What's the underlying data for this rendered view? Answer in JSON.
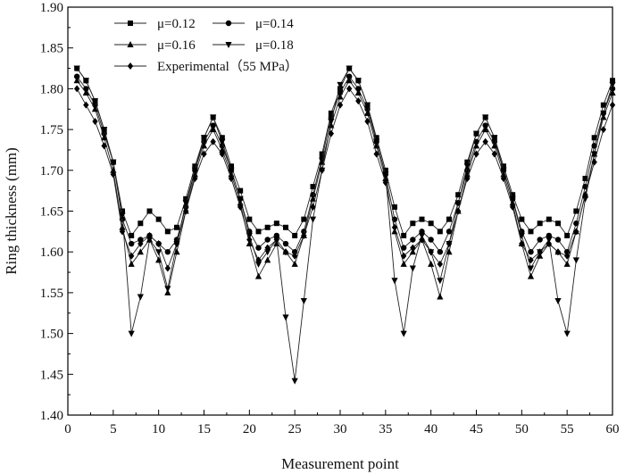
{
  "chart_data": {
    "type": "line",
    "title": "",
    "xlabel": "Measurement point",
    "ylabel": "Ring thickness (mm)",
    "xlim": [
      0,
      60
    ],
    "ylim": [
      1.4,
      1.9
    ],
    "xticks": [
      "0",
      "5",
      "10",
      "15",
      "20",
      "25",
      "30",
      "35",
      "40",
      "45",
      "50",
      "55",
      "60"
    ],
    "yticks": [
      "1.40",
      "1.45",
      "1.50",
      "1.55",
      "1.60",
      "1.65",
      "1.70",
      "1.75",
      "1.80",
      "1.85",
      "1.90"
    ],
    "grid": false,
    "legend_position": "top-left",
    "series": [
      {
        "name": "μ=0.12",
        "marker": "square",
        "x": [
          1,
          2,
          3,
          4,
          5,
          6,
          7,
          8,
          9,
          10,
          11,
          12,
          13,
          14,
          15,
          16,
          17,
          18,
          19,
          20,
          21,
          22,
          23,
          24,
          25,
          26,
          27,
          28,
          29,
          30,
          31,
          32,
          33,
          34,
          35,
          36,
          37,
          38,
          39,
          40,
          41,
          42,
          43,
          44,
          45,
          46,
          47,
          48,
          49,
          50,
          51,
          52,
          53,
          54,
          55,
          56,
          57,
          58,
          59,
          60
        ],
        "values": [
          1.825,
          1.81,
          1.785,
          1.75,
          1.71,
          1.65,
          1.62,
          1.635,
          1.65,
          1.64,
          1.625,
          1.63,
          1.665,
          1.705,
          1.74,
          1.765,
          1.74,
          1.705,
          1.675,
          1.64,
          1.625,
          1.63,
          1.635,
          1.63,
          1.62,
          1.64,
          1.68,
          1.72,
          1.77,
          1.8,
          1.825,
          1.81,
          1.78,
          1.74,
          1.7,
          1.655,
          1.62,
          1.635,
          1.64,
          1.635,
          1.625,
          1.64,
          1.67,
          1.71,
          1.745,
          1.765,
          1.74,
          1.705,
          1.67,
          1.64,
          1.625,
          1.635,
          1.64,
          1.635,
          1.62,
          1.65,
          1.69,
          1.74,
          1.78,
          1.81
        ]
      },
      {
        "name": "μ=0.14",
        "marker": "circle",
        "x": [
          1,
          2,
          3,
          4,
          5,
          6,
          7,
          8,
          9,
          10,
          11,
          12,
          13,
          14,
          15,
          16,
          17,
          18,
          19,
          20,
          21,
          22,
          23,
          24,
          25,
          26,
          27,
          28,
          29,
          30,
          31,
          32,
          33,
          34,
          35,
          36,
          37,
          38,
          39,
          40,
          41,
          42,
          43,
          44,
          45,
          46,
          47,
          48,
          49,
          50,
          51,
          52,
          53,
          54,
          55,
          56,
          57,
          58,
          59,
          60
        ],
        "values": [
          1.815,
          1.8,
          1.78,
          1.745,
          1.71,
          1.64,
          1.61,
          1.615,
          1.62,
          1.61,
          1.6,
          1.615,
          1.655,
          1.7,
          1.735,
          1.755,
          1.73,
          1.7,
          1.665,
          1.625,
          1.605,
          1.615,
          1.62,
          1.61,
          1.6,
          1.625,
          1.67,
          1.715,
          1.765,
          1.795,
          1.815,
          1.8,
          1.775,
          1.735,
          1.695,
          1.64,
          1.605,
          1.615,
          1.625,
          1.615,
          1.6,
          1.625,
          1.66,
          1.7,
          1.735,
          1.755,
          1.735,
          1.7,
          1.665,
          1.625,
          1.6,
          1.615,
          1.62,
          1.615,
          1.6,
          1.635,
          1.68,
          1.73,
          1.77,
          1.8
        ]
      },
      {
        "name": "μ=0.16",
        "marker": "triangle-up",
        "x": [
          1,
          2,
          3,
          4,
          5,
          6,
          7,
          8,
          9,
          10,
          11,
          12,
          13,
          14,
          15,
          16,
          17,
          18,
          19,
          20,
          21,
          22,
          23,
          24,
          25,
          26,
          27,
          28,
          29,
          30,
          31,
          32,
          33,
          34,
          35,
          36,
          37,
          38,
          39,
          40,
          41,
          42,
          43,
          44,
          45,
          46,
          47,
          48,
          49,
          50,
          51,
          52,
          53,
          54,
          55,
          56,
          57,
          58,
          59,
          60
        ],
        "values": [
          1.81,
          1.795,
          1.775,
          1.74,
          1.7,
          1.63,
          1.585,
          1.6,
          1.615,
          1.59,
          1.55,
          1.6,
          1.65,
          1.695,
          1.73,
          1.75,
          1.725,
          1.695,
          1.66,
          1.61,
          1.57,
          1.59,
          1.61,
          1.6,
          1.585,
          1.62,
          1.665,
          1.71,
          1.755,
          1.79,
          1.81,
          1.795,
          1.77,
          1.73,
          1.69,
          1.625,
          1.585,
          1.6,
          1.615,
          1.585,
          1.545,
          1.6,
          1.65,
          1.695,
          1.73,
          1.75,
          1.73,
          1.695,
          1.66,
          1.61,
          1.57,
          1.595,
          1.61,
          1.6,
          1.585,
          1.625,
          1.67,
          1.72,
          1.765,
          1.795
        ]
      },
      {
        "name": "μ=0.18",
        "marker": "triangle-down",
        "x": [
          1,
          2,
          3,
          4,
          5,
          6,
          7,
          8,
          9,
          10,
          11,
          12,
          13,
          14,
          15,
          16,
          17,
          18,
          19,
          20,
          21,
          22,
          23,
          24,
          25,
          26,
          27,
          28,
          29,
          30,
          31,
          32,
          33,
          34,
          35,
          36,
          37,
          38,
          39,
          40,
          41,
          42,
          43,
          44,
          45,
          46,
          47,
          48,
          49,
          50,
          51,
          52,
          53,
          54,
          55,
          56,
          57,
          58,
          59,
          60
        ],
        "values": [
          1.825,
          1.81,
          1.785,
          1.75,
          1.71,
          1.645,
          1.5,
          1.545,
          1.615,
          1.6,
          1.555,
          1.61,
          1.66,
          1.7,
          1.74,
          1.765,
          1.735,
          1.7,
          1.665,
          1.62,
          1.585,
          1.6,
          1.615,
          1.52,
          1.442,
          1.54,
          1.64,
          1.7,
          1.76,
          1.805,
          1.825,
          1.81,
          1.78,
          1.735,
          1.695,
          1.565,
          1.5,
          1.58,
          1.62,
          1.6,
          1.565,
          1.61,
          1.66,
          1.705,
          1.745,
          1.765,
          1.74,
          1.7,
          1.665,
          1.62,
          1.58,
          1.6,
          1.615,
          1.54,
          1.5,
          1.59,
          1.665,
          1.72,
          1.77,
          1.805
        ]
      },
      {
        "name": "Experimental（55 MPa）",
        "marker": "diamond",
        "x": [
          1,
          2,
          3,
          4,
          5,
          6,
          7,
          8,
          9,
          10,
          11,
          12,
          13,
          14,
          15,
          16,
          17,
          18,
          19,
          20,
          21,
          22,
          23,
          24,
          25,
          26,
          27,
          28,
          29,
          30,
          31,
          32,
          33,
          34,
          35,
          36,
          37,
          38,
          39,
          40,
          41,
          42,
          43,
          44,
          45,
          46,
          47,
          48,
          49,
          50,
          51,
          52,
          53,
          54,
          55,
          56,
          57,
          58,
          59,
          60
        ],
        "values": [
          1.8,
          1.78,
          1.76,
          1.73,
          1.695,
          1.625,
          1.595,
          1.61,
          1.62,
          1.61,
          1.58,
          1.61,
          1.65,
          1.69,
          1.72,
          1.735,
          1.72,
          1.69,
          1.655,
          1.615,
          1.59,
          1.605,
          1.615,
          1.6,
          1.595,
          1.62,
          1.655,
          1.7,
          1.745,
          1.78,
          1.8,
          1.785,
          1.76,
          1.72,
          1.685,
          1.63,
          1.595,
          1.605,
          1.615,
          1.6,
          1.585,
          1.61,
          1.65,
          1.69,
          1.72,
          1.735,
          1.72,
          1.69,
          1.655,
          1.61,
          1.59,
          1.6,
          1.61,
          1.6,
          1.595,
          1.625,
          1.67,
          1.71,
          1.75,
          1.78
        ]
      }
    ]
  }
}
